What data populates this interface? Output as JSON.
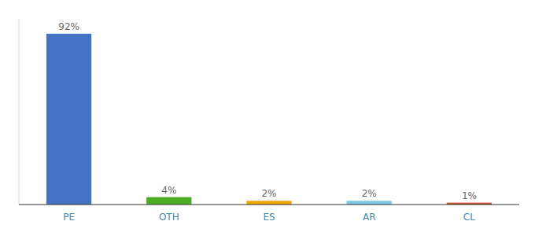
{
  "chart_data": {
    "type": "bar",
    "categories": [
      "PE",
      "OTH",
      "ES",
      "AR",
      "CL"
    ],
    "values": [
      92,
      4,
      2,
      2,
      1
    ],
    "value_labels": [
      "92%",
      "4%",
      "2%",
      "2%",
      "1%"
    ],
    "colors": [
      "#4472c4",
      "#4dac26",
      "#f0a500",
      "#7ec8e3",
      "#c0532a"
    ],
    "ylim": [
      0,
      100
    ],
    "data_labels": true,
    "tick_labels": "x",
    "grid": false
  }
}
